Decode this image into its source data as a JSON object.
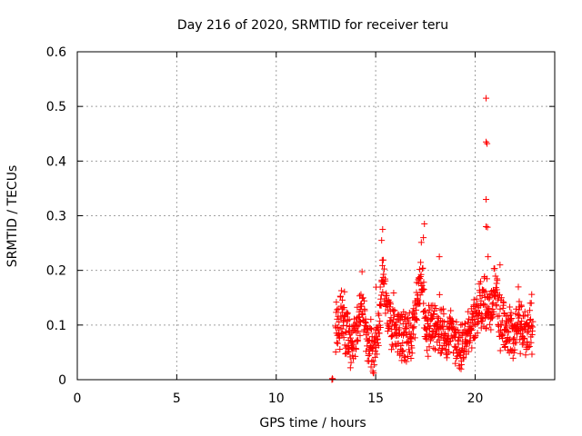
{
  "chart_data": {
    "type": "scatter",
    "title": "Day 216 of 2020, SRMTID for receiver teru",
    "xlabel": "GPS time / hours",
    "ylabel": "SRMTID / TECUs",
    "xlim": [
      0,
      24
    ],
    "ylim": [
      0,
      0.6
    ],
    "xticks": [
      0,
      5,
      10,
      15,
      20
    ],
    "yticks": [
      0,
      0.1,
      0.2,
      0.3,
      0.4,
      0.5,
      0.6
    ],
    "xtick_labels": [
      "0",
      "5",
      "10",
      "15",
      "20"
    ],
    "ytick_labels": [
      "0",
      "0.1",
      "0.2",
      "0.3",
      "0.4",
      "0.5",
      "0.6"
    ],
    "grid": true,
    "marker": "+",
    "color": "#ff0000",
    "series": [
      {
        "name": "teru",
        "x_start": 12.83,
        "x_end": 22.9,
        "point_count": 900,
        "profile_hours": [
          12.83,
          13.0,
          13.3,
          13.7,
          14.0,
          14.3,
          14.6,
          14.9,
          15.2,
          15.4,
          15.6,
          15.9,
          16.2,
          16.5,
          16.8,
          17.0,
          17.3,
          17.5,
          17.8,
          18.1,
          18.4,
          18.8,
          19.2,
          19.6,
          19.9,
          20.2,
          20.5,
          20.7,
          21.0,
          21.3,
          21.6,
          21.9,
          22.2,
          22.5,
          22.9
        ],
        "profile_values": [
          0.0,
          0.09,
          0.11,
          0.07,
          0.08,
          0.14,
          0.08,
          0.05,
          0.12,
          0.2,
          0.12,
          0.1,
          0.09,
          0.08,
          0.07,
          0.13,
          0.2,
          0.09,
          0.1,
          0.1,
          0.08,
          0.09,
          0.05,
          0.07,
          0.1,
          0.13,
          0.14,
          0.13,
          0.16,
          0.1,
          0.09,
          0.08,
          0.1,
          0.09,
          0.09
        ],
        "spikes": [
          {
            "x": 20.55,
            "y": 0.515
          },
          {
            "x": 20.55,
            "y": 0.435
          },
          {
            "x": 20.6,
            "y": 0.432
          },
          {
            "x": 20.55,
            "y": 0.33
          },
          {
            "x": 20.55,
            "y": 0.28
          },
          {
            "x": 20.62,
            "y": 0.279
          },
          {
            "x": 15.35,
            "y": 0.275
          },
          {
            "x": 17.45,
            "y": 0.285
          },
          {
            "x": 17.4,
            "y": 0.26
          },
          {
            "x": 15.3,
            "y": 0.255
          },
          {
            "x": 18.2,
            "y": 0.225
          },
          {
            "x": 20.65,
            "y": 0.225
          },
          {
            "x": 21.25,
            "y": 0.21
          },
          {
            "x": 12.8,
            "y": 0.0
          },
          {
            "x": 12.82,
            "y": 0.002
          },
          {
            "x": 12.84,
            "y": 0.001
          }
        ]
      }
    ]
  }
}
